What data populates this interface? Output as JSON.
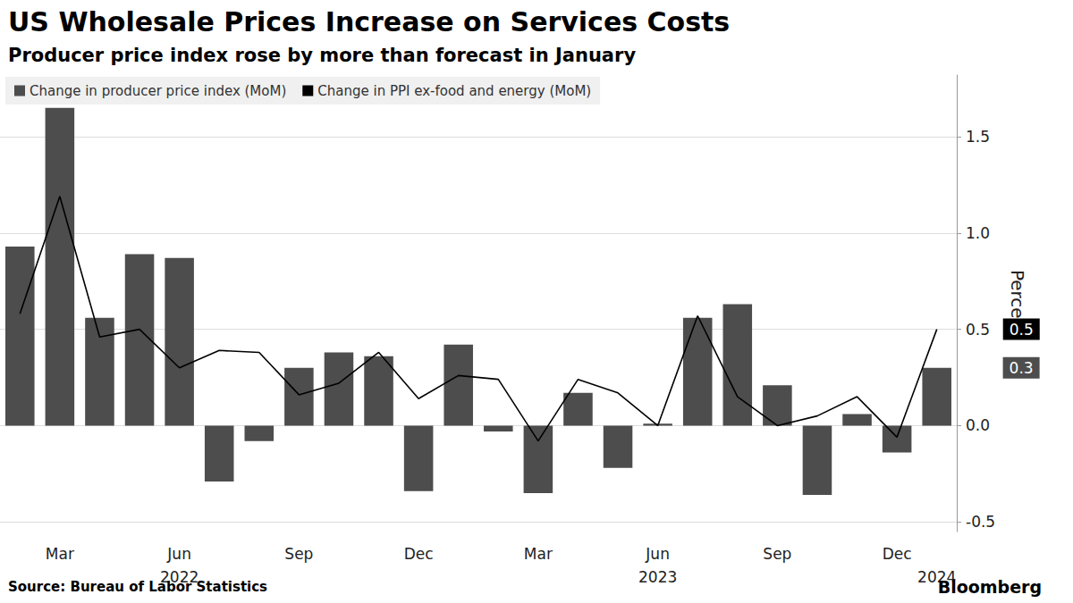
{
  "chart_data": {
    "type": "bar",
    "title": "US Wholesale Prices Increase on Services Costs",
    "subtitle": "Producer price index rose by more than forecast in January",
    "y_label": "Percent",
    "source": "Source: Bureau of Labor Statistics",
    "credit": "Bloomberg",
    "categories": [
      null,
      "Mar",
      null,
      null,
      "Jun\n2022",
      null,
      null,
      "Sep",
      null,
      null,
      "Dec",
      null,
      null,
      "Mar",
      null,
      null,
      "Jun\n2023",
      null,
      null,
      "Sep",
      null,
      null,
      "Dec",
      "\n2024"
    ],
    "series": [
      {
        "name": "Change in producer price index (MoM)",
        "type": "bar",
        "color": "#4d4d4d",
        "values": [
          0.93,
          1.65,
          0.56,
          0.89,
          0.87,
          -0.29,
          -0.08,
          0.3,
          0.38,
          0.36,
          -0.34,
          0.42,
          -0.03,
          -0.35,
          0.17,
          -0.22,
          0.01,
          0.56,
          0.63,
          0.21,
          -0.36,
          0.06,
          -0.14,
          0.3
        ],
        "value_labels": [
          null,
          null,
          null,
          null,
          null,
          null,
          null,
          null,
          null,
          null,
          null,
          null,
          null,
          null,
          null,
          null,
          null,
          null,
          null,
          null,
          null,
          null,
          null,
          "0.3"
        ]
      },
      {
        "name": "Change in PPI ex-food and energy (MoM)",
        "type": "line",
        "color": "#000000",
        "values": [
          0.58,
          1.19,
          0.46,
          0.5,
          0.3,
          0.39,
          0.38,
          0.16,
          0.22,
          0.38,
          0.14,
          0.26,
          0.24,
          -0.08,
          0.24,
          0.17,
          0.0,
          0.57,
          0.15,
          0.0,
          0.05,
          0.15,
          -0.06,
          0.5
        ],
        "value_labels": [
          null,
          null,
          null,
          null,
          null,
          null,
          null,
          null,
          null,
          null,
          null,
          null,
          null,
          null,
          null,
          null,
          null,
          null,
          null,
          null,
          null,
          null,
          null,
          "0.5"
        ]
      }
    ],
    "ylim": [
      -0.55,
      1.82
    ],
    "yticks": [
      -0.5,
      {
        "value": 0,
        "label": "0.0"
      },
      0.5,
      {
        "value": 1,
        "label": "1.0"
      },
      1.5
    ],
    "grid": true,
    "legend": "top-left"
  }
}
